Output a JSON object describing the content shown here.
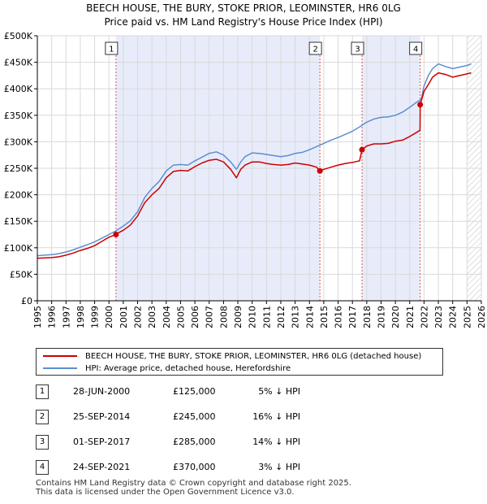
{
  "chart_title": {
    "line1": "BEECH HOUSE, THE BURY, STOKE PRIOR, LEOMINSTER, HR6 0LG",
    "line2": "Price paid vs. HM Land Registry's House Price Index (HPI)"
  },
  "legend": {
    "property_label": "BEECH HOUSE, THE BURY, STOKE PRIOR, LEOMINSTER, HR6 0LG (detached house)",
    "hpi_label": "HPI: Average price, detached house, Herefordshire"
  },
  "sales": [
    {
      "num": "1",
      "date": "28-JUN-2000",
      "price": "£125,000",
      "hpi": "5% ↓ HPI"
    },
    {
      "num": "2",
      "date": "25-SEP-2014",
      "price": "£245,000",
      "hpi": "16% ↓ HPI"
    },
    {
      "num": "3",
      "date": "01-SEP-2017",
      "price": "£285,000",
      "hpi": "14% ↓ HPI"
    },
    {
      "num": "4",
      "date": "24-SEP-2021",
      "price": "£370,000",
      "hpi": "3% ↓ HPI"
    }
  ],
  "footer": {
    "line1": "Contains HM Land Registry data © Crown copyright and database right 2025.",
    "line2": "This data is licensed under the Open Government Licence v3.0."
  },
  "colors": {
    "property": "#cc0000",
    "hpi": "#5b8fd1",
    "shade": "#e8ecfa",
    "grid": "#d9d9d9",
    "vline": "#e05555"
  },
  "chart_data": {
    "type": "line",
    "title": "BEECH HOUSE, THE BURY, STOKE PRIOR, LEOMINSTER, HR6 0LG — Price paid vs. HM Land Registry's House Price Index (HPI)",
    "xlabel": "",
    "ylabel": "",
    "xlim": [
      1995,
      2026
    ],
    "ylim": [
      0,
      500000
    ],
    "x_ticks": [
      "1995",
      "1996",
      "1997",
      "1998",
      "1999",
      "2000",
      "2001",
      "2002",
      "2003",
      "2004",
      "2005",
      "2006",
      "2007",
      "2008",
      "2009",
      "2010",
      "2011",
      "2012",
      "2013",
      "2014",
      "2015",
      "2016",
      "2017",
      "2018",
      "2019",
      "2020",
      "2021",
      "2022",
      "2023",
      "2024",
      "2025",
      "2026"
    ],
    "y_ticks": [
      {
        "value": 0,
        "label": "£0"
      },
      {
        "value": 50000,
        "label": "£50K"
      },
      {
        "value": 100000,
        "label": "£100K"
      },
      {
        "value": 150000,
        "label": "£150K"
      },
      {
        "value": 200000,
        "label": "£200K"
      },
      {
        "value": 250000,
        "label": "£250K"
      },
      {
        "value": 300000,
        "label": "£300K"
      },
      {
        "value": 350000,
        "label": "£350K"
      },
      {
        "value": 400000,
        "label": "£400K"
      },
      {
        "value": 450000,
        "label": "£450K"
      },
      {
        "value": 500000,
        "label": "£500K"
      }
    ],
    "grid": true,
    "shaded_ranges": [
      [
        2000.49,
        2014.73
      ],
      [
        2017.67,
        2021.73
      ]
    ],
    "hatched_from": 2025.0,
    "series": [
      {
        "name": "BEECH HOUSE, THE BURY, STOKE PRIOR, LEOMINSTER, HR6 0LG (detached house)",
        "x": [
          1995.0,
          1995.5,
          1996.0,
          1996.5,
          1997.0,
          1997.5,
          1998.0,
          1998.5,
          1999.0,
          1999.5,
          2000.0,
          2000.49,
          2000.5,
          2001.0,
          2001.5,
          2002.0,
          2002.5,
          2003.0,
          2003.5,
          2004.0,
          2004.5,
          2005.0,
          2005.5,
          2006.0,
          2006.5,
          2007.0,
          2007.5,
          2008.0,
          2008.5,
          2008.9,
          2009.2,
          2009.5,
          2010.0,
          2010.5,
          2011.0,
          2011.5,
          2012.0,
          2012.5,
          2013.0,
          2013.5,
          2014.0,
          2014.5,
          2014.73,
          2015.0,
          2015.5,
          2016.0,
          2016.5,
          2017.0,
          2017.5,
          2017.67,
          2018.0,
          2018.5,
          2019.0,
          2019.5,
          2020.0,
          2020.5,
          2021.0,
          2021.5,
          2021.72,
          2021.73,
          2022.0,
          2022.3,
          2022.6,
          2023.0,
          2023.5,
          2024.0,
          2024.5,
          2025.0,
          2025.3
        ],
        "y": [
          80000,
          81000,
          81500,
          83000,
          86000,
          90000,
          95000,
          99000,
          104000,
          112000,
          120000,
          125000,
          126000,
          133000,
          143000,
          160000,
          185000,
          200000,
          212000,
          232000,
          244000,
          246000,
          245000,
          253000,
          260000,
          265000,
          267000,
          262000,
          248000,
          232000,
          248000,
          256000,
          262000,
          262000,
          259000,
          257000,
          256000,
          257000,
          260000,
          258000,
          256000,
          252000,
          245000,
          248000,
          252000,
          256000,
          259000,
          261000,
          264000,
          285000,
          292000,
          296000,
          296000,
          297000,
          301000,
          303000,
          310000,
          318000,
          322000,
          370000,
          395000,
          408000,
          422000,
          430000,
          427000,
          422000,
          425000,
          428000,
          430000
        ]
      },
      {
        "name": "HPI: Average price, detached house, Herefordshire",
        "x": [
          1995.0,
          1995.5,
          1996.0,
          1996.5,
          1997.0,
          1997.5,
          1998.0,
          1998.5,
          1999.0,
          1999.5,
          2000.0,
          2000.5,
          2001.0,
          2001.5,
          2002.0,
          2002.5,
          2003.0,
          2003.5,
          2004.0,
          2004.5,
          2005.0,
          2005.5,
          2006.0,
          2006.5,
          2007.0,
          2007.5,
          2008.0,
          2008.5,
          2008.9,
          2009.2,
          2009.5,
          2010.0,
          2010.5,
          2011.0,
          2011.5,
          2012.0,
          2012.5,
          2013.0,
          2013.5,
          2014.0,
          2014.5,
          2015.0,
          2015.5,
          2016.0,
          2016.5,
          2017.0,
          2017.5,
          2018.0,
          2018.5,
          2019.0,
          2019.5,
          2020.0,
          2020.5,
          2021.0,
          2021.5,
          2021.8,
          2022.0,
          2022.3,
          2022.6,
          2023.0,
          2023.5,
          2024.0,
          2024.5,
          2025.0,
          2025.3
        ],
        "y": [
          85000,
          86000,
          87000,
          89000,
          92000,
          96000,
          101000,
          106000,
          111000,
          118000,
          125000,
          132000,
          141000,
          151000,
          168000,
          195000,
          212000,
          225000,
          245000,
          256000,
          257000,
          256000,
          264000,
          271000,
          278000,
          281000,
          275000,
          262000,
          248000,
          262000,
          272000,
          279000,
          278000,
          276000,
          274000,
          272000,
          274000,
          278000,
          280000,
          285000,
          291000,
          297000,
          303000,
          308000,
          314000,
          320000,
          328000,
          337000,
          343000,
          346000,
          347000,
          350000,
          356000,
          365000,
          375000,
          380000,
          405000,
          425000,
          438000,
          447000,
          442000,
          438000,
          441000,
          444000,
          447000
        ]
      }
    ],
    "sale_markers": [
      {
        "label": "1",
        "x": 2000.49,
        "y": 125000
      },
      {
        "label": "2",
        "x": 2014.73,
        "y": 245000
      },
      {
        "label": "3",
        "x": 2017.67,
        "y": 285000
      },
      {
        "label": "4",
        "x": 2021.73,
        "y": 370000
      }
    ]
  }
}
